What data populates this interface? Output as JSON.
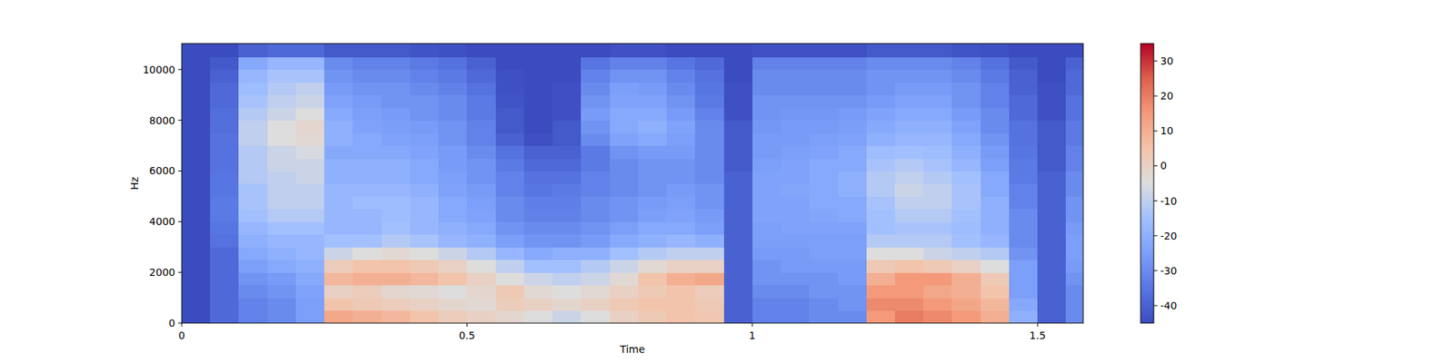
{
  "chart_data": {
    "type": "heatmap",
    "x_label": "Time",
    "y_label": "Hz",
    "xlim": [
      0,
      1.58
    ],
    "ylim": [
      0,
      11025
    ],
    "xticks": [
      0,
      0.5,
      1,
      1.5
    ],
    "yticks": [
      0,
      2000,
      4000,
      6000,
      8000,
      10000
    ],
    "x_edges": [
      0,
      0.05,
      0.1,
      0.15,
      0.2,
      0.25,
      0.3,
      0.35,
      0.4,
      0.45,
      0.5,
      0.55,
      0.6,
      0.65,
      0.7,
      0.75,
      0.8,
      0.85,
      0.9,
      0.95,
      1.0,
      1.05,
      1.1,
      1.15,
      1.2,
      1.25,
      1.3,
      1.35,
      1.4,
      1.45,
      1.5,
      1.55,
      1.58
    ],
    "y_edges": [
      0,
      500,
      1000,
      1500,
      2000,
      2500,
      3000,
      3500,
      4000,
      4500,
      5000,
      5500,
      6000,
      6500,
      7000,
      7500,
      8000,
      8500,
      9000,
      9500,
      10000,
      10500,
      11025
    ],
    "values": [
      [
        -45,
        -38,
        -32,
        -30,
        -25,
        12,
        10,
        8,
        5,
        2,
        0,
        -2,
        -5,
        -8,
        -5,
        0,
        3,
        5,
        4,
        -40,
        -32,
        -32,
        -30,
        -30,
        15,
        20,
        18,
        15,
        10,
        -20,
        -40,
        -30
      ],
      [
        -45,
        -38,
        -32,
        -30,
        -25,
        5,
        3,
        2,
        0,
        -2,
        -3,
        2,
        0,
        -2,
        0,
        3,
        5,
        5,
        3,
        -40,
        -32,
        -32,
        -30,
        -28,
        18,
        18,
        15,
        12,
        8,
        -22,
        -40,
        -30
      ],
      [
        -45,
        -38,
        -30,
        -28,
        -24,
        0,
        2,
        -2,
        -3,
        -5,
        -2,
        3,
        -3,
        -5,
        -3,
        0,
        3,
        5,
        2,
        -40,
        -30,
        -30,
        -28,
        -28,
        15,
        15,
        12,
        10,
        5,
        -25,
        -40,
        -30
      ],
      [
        -45,
        -38,
        -28,
        -26,
        -22,
        8,
        10,
        10,
        8,
        5,
        0,
        -5,
        -8,
        -10,
        -8,
        -3,
        5,
        10,
        12,
        -40,
        -28,
        -28,
        -28,
        -26,
        10,
        15,
        15,
        10,
        3,
        -25,
        -40,
        -28
      ],
      [
        -45,
        -38,
        -25,
        -22,
        -20,
        2,
        5,
        5,
        3,
        0,
        -5,
        -10,
        -15,
        -15,
        -12,
        -8,
        -3,
        0,
        0,
        -40,
        -28,
        -26,
        -26,
        -26,
        3,
        5,
        3,
        0,
        -5,
        -25,
        -40,
        -26
      ],
      [
        -45,
        -38,
        -22,
        -20,
        -18,
        -8,
        -5,
        -3,
        -5,
        -8,
        -12,
        -18,
        -22,
        -20,
        -20,
        -15,
        -12,
        -10,
        -10,
        -40,
        -26,
        -26,
        -25,
        -25,
        -5,
        -5,
        -8,
        -10,
        -12,
        -28,
        -40,
        -25
      ],
      [
        -45,
        -36,
        -20,
        -18,
        -18,
        -15,
        -15,
        -12,
        -14,
        -18,
        -20,
        -25,
        -28,
        -28,
        -26,
        -22,
        -20,
        -18,
        -20,
        -40,
        -25,
        -25,
        -25,
        -25,
        -12,
        -12,
        -12,
        -15,
        -18,
        -30,
        -40,
        -25
      ],
      [
        -45,
        -35,
        -18,
        -15,
        -15,
        -18,
        -18,
        -15,
        -18,
        -20,
        -22,
        -28,
        -30,
        -30,
        -28,
        -25,
        -22,
        -22,
        -25,
        -40,
        -25,
        -24,
        -24,
        -24,
        -15,
        -14,
        -14,
        -16,
        -20,
        -30,
        -40,
        -26
      ],
      [
        -45,
        -34,
        -15,
        -12,
        -12,
        -18,
        -18,
        -16,
        -18,
        -22,
        -24,
        -30,
        -32,
        -32,
        -30,
        -28,
        -25,
        -24,
        -26,
        -40,
        -24,
        -24,
        -23,
        -22,
        -15,
        -12,
        -12,
        -15,
        -20,
        -30,
        -40,
        -28
      ],
      [
        -45,
        -34,
        -14,
        -10,
        -10,
        -18,
        -16,
        -16,
        -18,
        -22,
        -25,
        -30,
        -33,
        -33,
        -30,
        -28,
        -26,
        -25,
        -28,
        -40,
        -24,
        -24,
        -22,
        -22,
        -14,
        -10,
        -10,
        -14,
        -20,
        -32,
        -40,
        -28
      ],
      [
        -45,
        -35,
        -14,
        -10,
        -10,
        -18,
        -18,
        -18,
        -20,
        -24,
        -26,
        -32,
        -35,
        -34,
        -32,
        -30,
        -28,
        -26,
        -28,
        -40,
        -24,
        -23,
        -22,
        -20,
        -12,
        -8,
        -10,
        -14,
        -22,
        -32,
        -40,
        -30
      ],
      [
        -45,
        -35,
        -12,
        -10,
        -8,
        -20,
        -20,
        -20,
        -22,
        -25,
        -28,
        -32,
        -36,
        -36,
        -32,
        -30,
        -28,
        -28,
        -30,
        -40,
        -24,
        -24,
        -22,
        -20,
        -12,
        -10,
        -12,
        -15,
        -22,
        -34,
        -40,
        -30
      ],
      [
        -45,
        -36,
        -12,
        -8,
        -8,
        -20,
        -20,
        -20,
        -22,
        -26,
        -28,
        -34,
        -38,
        -38,
        -34,
        -30,
        -28,
        -28,
        -30,
        -42,
        -25,
        -24,
        -22,
        -22,
        -14,
        -12,
        -14,
        -18,
        -25,
        -34,
        -42,
        -32
      ],
      [
        -45,
        -36,
        -12,
        -8,
        -6,
        -22,
        -22,
        -22,
        -24,
        -26,
        -30,
        -36,
        -40,
        -40,
        -34,
        -28,
        -26,
        -26,
        -30,
        -42,
        -26,
        -25,
        -24,
        -22,
        -16,
        -15,
        -16,
        -20,
        -26,
        -35,
        -42,
        -32
      ],
      [
        -45,
        -36,
        -10,
        -5,
        -3,
        -20,
        -22,
        -24,
        -25,
        -28,
        -32,
        -40,
        -44,
        -42,
        -30,
        -24,
        -22,
        -25,
        -30,
        -42,
        -26,
        -26,
        -25,
        -24,
        -20,
        -18,
        -18,
        -22,
        -28,
        -36,
        -42,
        -34
      ],
      [
        -45,
        -37,
        -10,
        -5,
        -2,
        -20,
        -24,
        -25,
        -26,
        -28,
        -32,
        -42,
        -45,
        -42,
        -28,
        -22,
        -20,
        -24,
        -30,
        -42,
        -27,
        -26,
        -26,
        -25,
        -22,
        -20,
        -20,
        -24,
        -30,
        -36,
        -42,
        -34
      ],
      [
        -45,
        -37,
        -12,
        -8,
        -5,
        -22,
        -25,
        -26,
        -28,
        -30,
        -34,
        -42,
        -45,
        -44,
        -26,
        -22,
        -22,
        -26,
        -32,
        -44,
        -28,
        -27,
        -27,
        -26,
        -24,
        -22,
        -22,
        -26,
        -30,
        -38,
        -44,
        -36
      ],
      [
        -45,
        -38,
        -14,
        -10,
        -8,
        -24,
        -26,
        -28,
        -28,
        -30,
        -34,
        -43,
        -45,
        -44,
        -28,
        -24,
        -24,
        -28,
        -34,
        -44,
        -28,
        -28,
        -28,
        -28,
        -26,
        -24,
        -24,
        -28,
        -32,
        -38,
        -44,
        -36
      ],
      [
        -45,
        -38,
        -16,
        -12,
        -10,
        -26,
        -28,
        -28,
        -30,
        -32,
        -36,
        -44,
        -45,
        -44,
        -30,
        -25,
        -26,
        -30,
        -35,
        -44,
        -30,
        -30,
        -30,
        -30,
        -28,
        -26,
        -26,
        -28,
        -32,
        -40,
        -44,
        -38
      ],
      [
        -45,
        -40,
        -18,
        -14,
        -14,
        -28,
        -30,
        -30,
        -32,
        -34,
        -38,
        -44,
        -45,
        -45,
        -32,
        -28,
        -28,
        -32,
        -36,
        -45,
        -30,
        -30,
        -30,
        -30,
        -28,
        -28,
        -28,
        -30,
        -34,
        -40,
        -45,
        -38
      ],
      [
        -45,
        -42,
        -22,
        -18,
        -18,
        -30,
        -32,
        -32,
        -34,
        -36,
        -40,
        -45,
        -45,
        -45,
        -35,
        -32,
        -32,
        -35,
        -38,
        -45,
        -32,
        -32,
        -32,
        -32,
        -30,
        -30,
        -30,
        -32,
        -36,
        -42,
        -45,
        -40
      ],
      [
        -45,
        -45,
        -40,
        -38,
        -38,
        -42,
        -42,
        -42,
        -43,
        -44,
        -45,
        -45,
        -45,
        -45,
        -45,
        -44,
        -44,
        -45,
        -45,
        -45,
        -44,
        -44,
        -44,
        -44,
        -42,
        -42,
        -42,
        -43,
        -44,
        -45,
        -45,
        -45
      ]
    ],
    "colorbar": {
      "range": [
        -45,
        35
      ],
      "ticks": [
        -40,
        -30,
        -20,
        -10,
        0,
        10,
        20,
        30
      ]
    }
  }
}
